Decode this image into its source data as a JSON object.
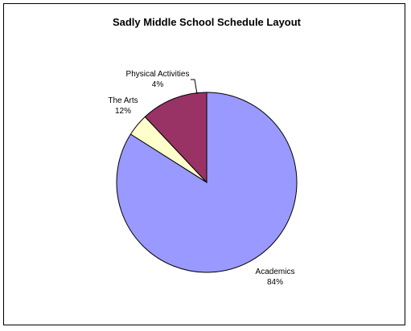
{
  "chart_data": {
    "type": "pie",
    "title": "Sadly Middle School Schedule Layout",
    "slices": [
      {
        "label": "Academics",
        "value": 84,
        "value_label": "84%",
        "color": "#9999ff"
      },
      {
        "label": "Physical Activities",
        "value": 4,
        "value_label": "4%",
        "color": "#ffffcc"
      },
      {
        "label": "The Arts",
        "value": 12,
        "value_label": "12%",
        "color": "#993366"
      }
    ],
    "start_angle": "12 o'clock",
    "direction": "clockwise",
    "legend": "none",
    "labels": "outside"
  }
}
